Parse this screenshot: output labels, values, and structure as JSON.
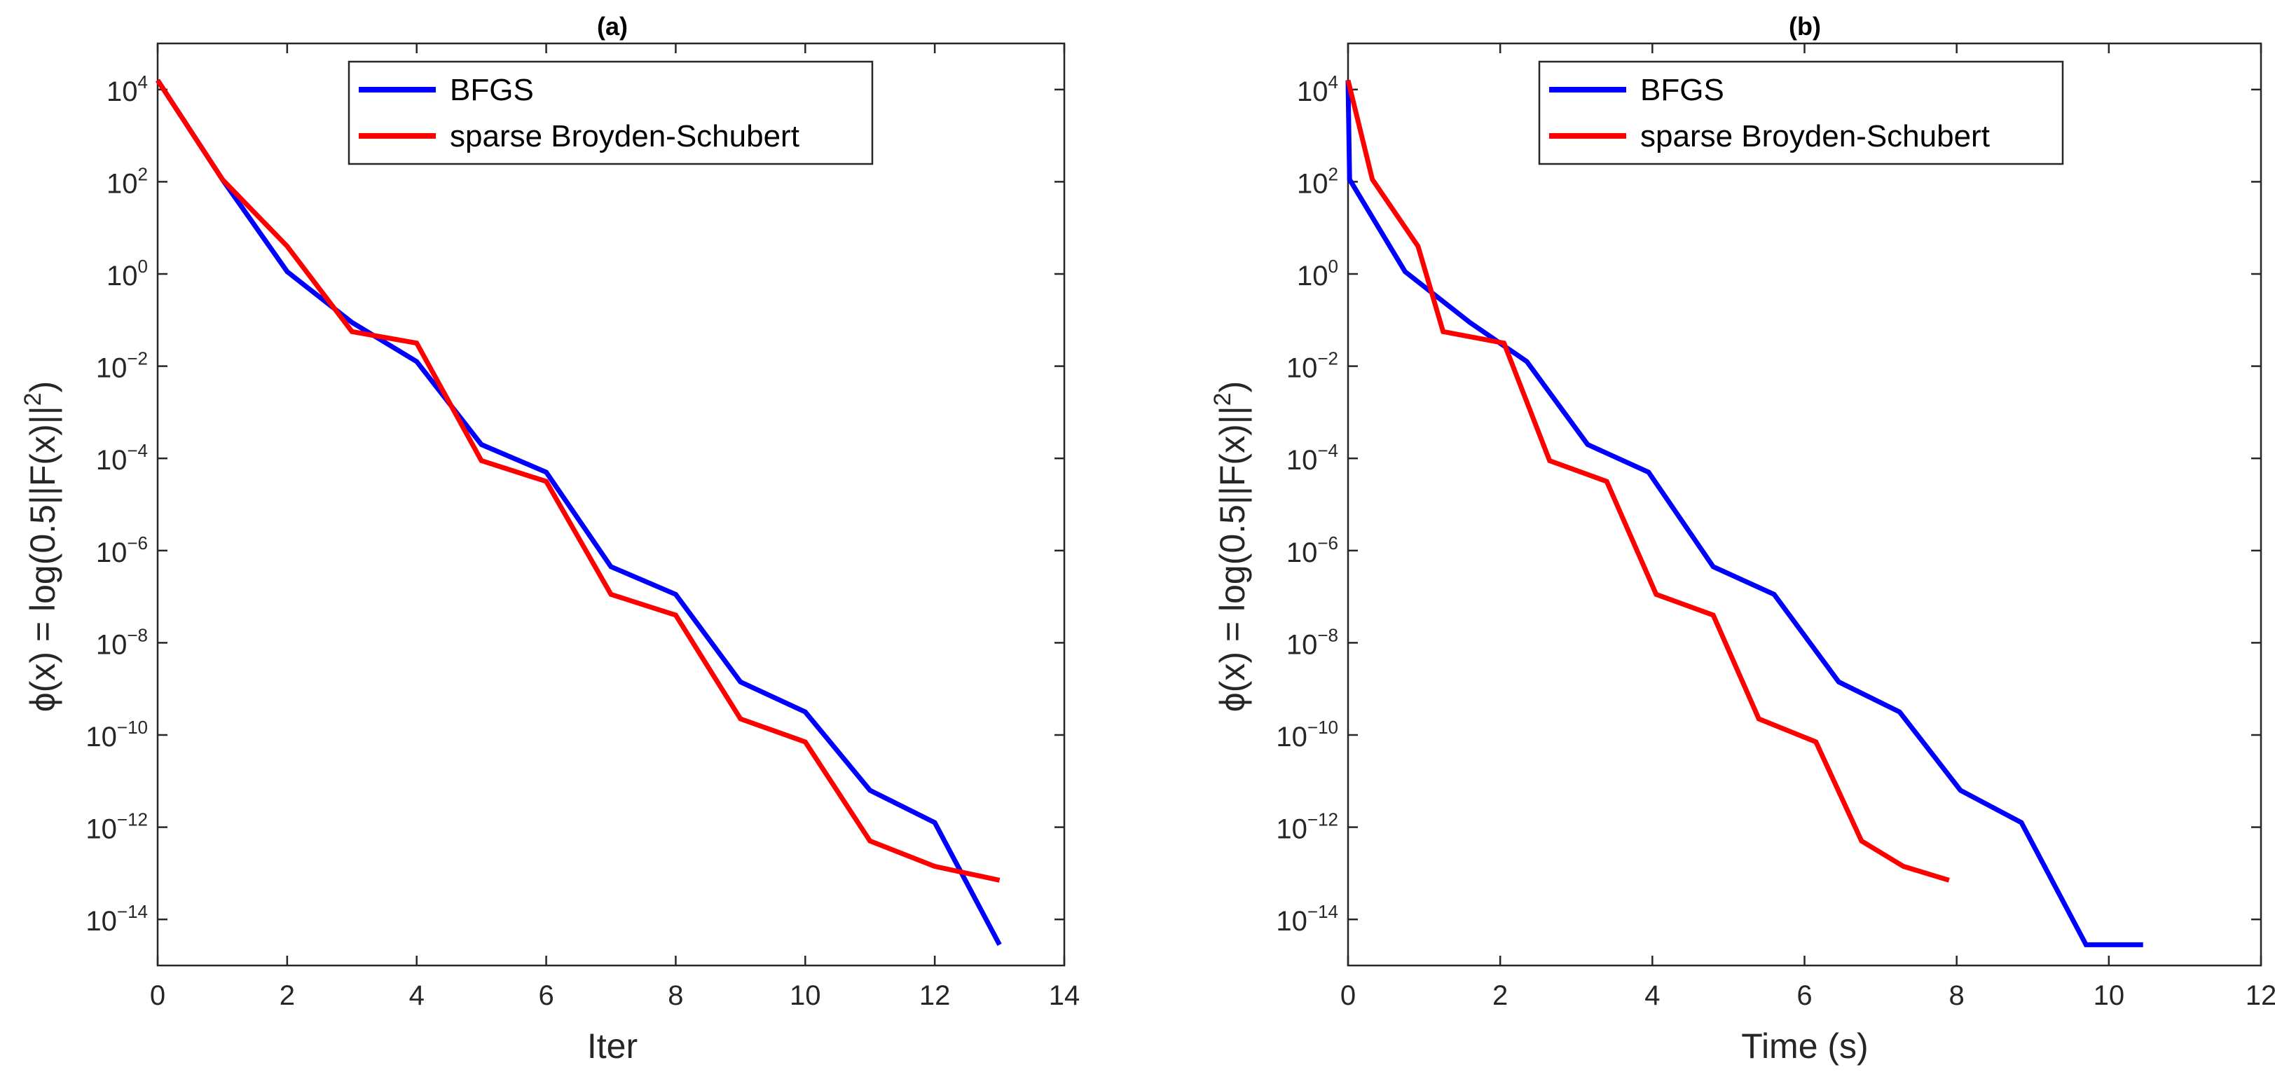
{
  "chart_data": [
    {
      "type": "line",
      "title": "(a)",
      "xlabel": "Iter",
      "ylabel": "ϕ(x) = log(0.5||F(x)||²)",
      "yscale": "log",
      "xlim": [
        0,
        14
      ],
      "ylim_exp": [
        -15,
        5
      ],
      "xticks": [
        0,
        2,
        4,
        6,
        8,
        10,
        12,
        14
      ],
      "yticks_exp": [
        -14,
        -12,
        -10,
        -8,
        -6,
        -4,
        -2,
        0,
        2,
        4
      ],
      "legend_position": "top-center",
      "series": [
        {
          "name": "BFGS",
          "color": "#0000ff",
          "x": [
            0,
            1,
            2,
            3,
            4,
            5,
            6,
            7,
            8,
            9,
            10,
            11,
            12,
            13
          ],
          "log10_y": [
            4.2,
            2.05,
            0.05,
            -1.05,
            -1.9,
            -3.7,
            -4.3,
            -6.35,
            -6.95,
            -8.85,
            -9.5,
            -11.2,
            -11.9,
            -14.55
          ]
        },
        {
          "name": "sparse Broyden-Schubert",
          "color": "#ff0000",
          "x": [
            0,
            1,
            2,
            3,
            4,
            5,
            6,
            7,
            8,
            9,
            10,
            11,
            12,
            13
          ],
          "log10_y": [
            4.2,
            2.05,
            0.6,
            -1.25,
            -1.5,
            -4.05,
            -4.5,
            -6.95,
            -7.4,
            -9.65,
            -10.15,
            -12.3,
            -12.85,
            -13.15
          ]
        }
      ]
    },
    {
      "type": "line",
      "title": "(b)",
      "xlabel": "Time (s)",
      "ylabel": "ϕ(x) = log(0.5||F(x)||²)",
      "yscale": "log",
      "xlim": [
        0,
        12
      ],
      "ylim_exp": [
        -15,
        5
      ],
      "xticks": [
        0,
        2,
        4,
        6,
        8,
        10,
        12
      ],
      "yticks_exp": [
        -14,
        -12,
        -10,
        -8,
        -6,
        -4,
        -2,
        0,
        2,
        4
      ],
      "legend_position": "top-center",
      "series": [
        {
          "name": "BFGS",
          "color": "#0000ff",
          "x": [
            0,
            0.02,
            0.75,
            1.6,
            2.35,
            3.15,
            3.95,
            4.8,
            5.6,
            6.45,
            7.25,
            8.05,
            8.85,
            9.7,
            10.45
          ],
          "log10_y": [
            4.2,
            2.05,
            0.05,
            -1.05,
            -1.9,
            -3.7,
            -4.3,
            -6.35,
            -6.95,
            -8.85,
            -9.5,
            -11.2,
            -11.9,
            -14.55,
            -14.55
          ]
        },
        {
          "name": "sparse Broyden-Schubert",
          "color": "#ff0000",
          "x": [
            0,
            0.32,
            0.92,
            1.25,
            2.05,
            2.65,
            3.4,
            4.05,
            4.8,
            5.4,
            6.15,
            6.75,
            7.3,
            7.9
          ],
          "log10_y": [
            4.2,
            2.05,
            0.6,
            -1.25,
            -1.5,
            -4.05,
            -4.5,
            -6.95,
            -7.4,
            -9.65,
            -10.15,
            -12.3,
            -12.85,
            -13.15
          ]
        }
      ]
    }
  ]
}
